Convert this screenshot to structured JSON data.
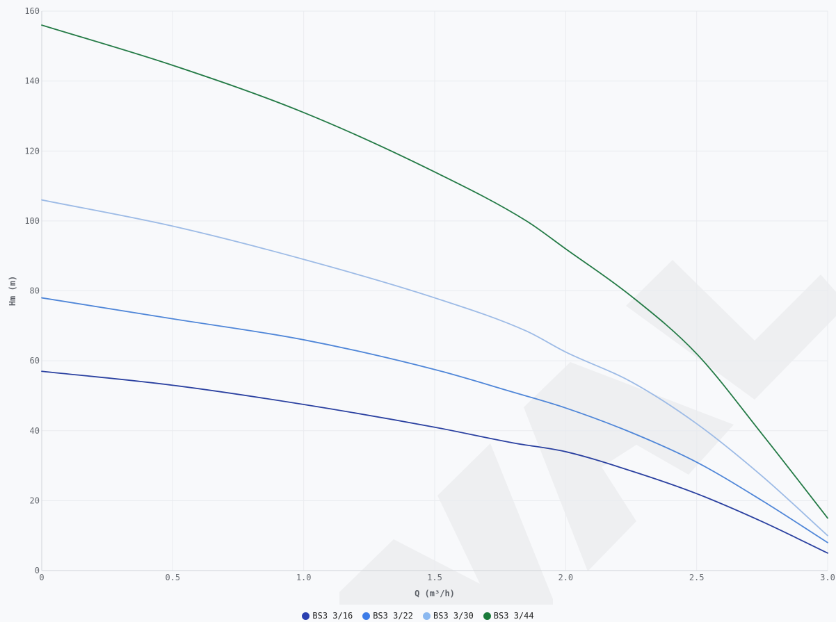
{
  "chart_data": {
    "type": "line",
    "title": "",
    "xlabel": "Q (m³/h)",
    "ylabel": "Hm (m)",
    "xlim": [
      0,
      3.0
    ],
    "ylim": [
      0,
      160
    ],
    "x_ticks": [
      "0",
      "0.5",
      "1.0",
      "1.5",
      "2.0",
      "2.5",
      "3.0"
    ],
    "y_ticks": [
      "0",
      "20",
      "40",
      "60",
      "80",
      "100",
      "120",
      "140",
      "160"
    ],
    "grid": true,
    "legend_position": "bottom-center",
    "series": [
      {
        "name": "BS3 3/16",
        "color": "#2a40a0",
        "legend_color": "#2a40b0",
        "points": [
          [
            0,
            57
          ],
          [
            0.5,
            53
          ],
          [
            1.0,
            47.5
          ],
          [
            1.5,
            41
          ],
          [
            1.8,
            36.5
          ],
          [
            2.0,
            34
          ],
          [
            2.25,
            28.5
          ],
          [
            2.5,
            22
          ],
          [
            2.75,
            14
          ],
          [
            3.0,
            5
          ]
        ]
      },
      {
        "name": "BS3 3/22",
        "color": "#4f86d8",
        "legend_color": "#3b7be8",
        "points": [
          [
            0,
            78
          ],
          [
            0.5,
            72
          ],
          [
            1.0,
            66
          ],
          [
            1.5,
            57.5
          ],
          [
            1.8,
            51
          ],
          [
            2.0,
            46.5
          ],
          [
            2.25,
            39.5
          ],
          [
            2.5,
            31
          ],
          [
            2.75,
            20
          ],
          [
            3.0,
            8
          ]
        ]
      },
      {
        "name": "BS3 3/30",
        "color": "#9dbbe6",
        "legend_color": "#8bb8f0",
        "points": [
          [
            0,
            106
          ],
          [
            0.5,
            98.5
          ],
          [
            1.0,
            89
          ],
          [
            1.5,
            78
          ],
          [
            1.85,
            68.5
          ],
          [
            2.0,
            62.5
          ],
          [
            2.25,
            54
          ],
          [
            2.5,
            42
          ],
          [
            2.75,
            27
          ],
          [
            3.0,
            10
          ]
        ]
      },
      {
        "name": "BS3 3/44",
        "color": "#237a45",
        "legend_color": "#1a7a3a",
        "points": [
          [
            0,
            156
          ],
          [
            0.5,
            144.5
          ],
          [
            1.0,
            131
          ],
          [
            1.5,
            114
          ],
          [
            1.85,
            100
          ],
          [
            2.0,
            92
          ],
          [
            2.25,
            78.5
          ],
          [
            2.5,
            62
          ],
          [
            2.75,
            39
          ],
          [
            3.0,
            15
          ]
        ]
      }
    ]
  }
}
